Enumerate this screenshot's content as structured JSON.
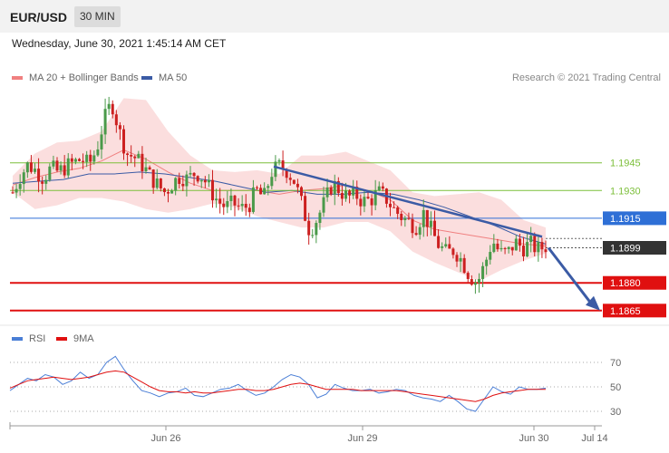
{
  "header": {
    "pair": "EUR/USD",
    "timeframe": "30 MIN",
    "datetime": "Wednesday, June 30, 2021 1:45:14 AM CET",
    "credit": "Research © 2021 Trading Central"
  },
  "legend": {
    "ma20": "MA 20 + Bollinger Bands",
    "ma50": "MA 50",
    "rsi": "RSI",
    "ma9": "9MA"
  },
  "colors": {
    "candle_up": "#4a9a4a",
    "candle_down": "#cc2020",
    "bollinger_fill": "#f9d3d3",
    "ma20": "#f08080",
    "ma50": "#3b5ba5",
    "trendline": "#3b5ba5",
    "support": "#e01010",
    "resistance": "#7cbf3a",
    "current_price": "#333333",
    "rsi": "#4a7ed6",
    "ma9": "#e01010"
  },
  "chart_data": [
    {
      "type": "candlestick",
      "title": "EUR/USD",
      "timeframe": "30 MIN",
      "x_ticks": [
        "Jun 26",
        "Jun 29",
        "Jun 30",
        "Jul 14"
      ],
      "ylim": [
        1.186,
        1.199
      ],
      "levels": [
        {
          "value": 1.1945,
          "label": "1.1945",
          "kind": "resistance",
          "color": "#7cbf3a",
          "box": false
        },
        {
          "value": 1.193,
          "label": "1.1930",
          "kind": "resistance",
          "color": "#7cbf3a",
          "box": false
        },
        {
          "value": 1.1915,
          "label": "1.1915",
          "kind": "pivot",
          "color": "#2e6fd6",
          "box": true
        },
        {
          "value": 1.1899,
          "label": "1.1899",
          "kind": "last-price",
          "color": "#333333",
          "box": true
        },
        {
          "value": 1.188,
          "label": "1.1880",
          "kind": "support",
          "color": "#e01010",
          "box": true
        },
        {
          "value": 1.1865,
          "label": "1.1865",
          "kind": "support",
          "color": "#e01010",
          "box": true
        }
      ],
      "trendline": {
        "from": 1.1943,
        "to": 1.1905
      },
      "forecast_arrow": {
        "from": 1.1899,
        "to": 1.1865
      },
      "close_path": [
        1.1929,
        1.1938,
        1.1944,
        1.1941,
        1.1937,
        1.1942,
        1.194,
        1.1943,
        1.1945,
        1.1947,
        1.1944,
        1.1952,
        1.1968,
        1.1978,
        1.1962,
        1.195,
        1.1948,
        1.1944,
        1.1938,
        1.1933,
        1.1929,
        1.1934,
        1.1938,
        1.1936,
        1.194,
        1.1937,
        1.193,
        1.1924,
        1.1921,
        1.1923,
        1.192,
        1.1922,
        1.193,
        1.1926,
        1.194,
        1.1943,
        1.1941,
        1.1935,
        1.1922,
        1.1908,
        1.1915,
        1.1924,
        1.1934,
        1.193,
        1.1926,
        1.1928,
        1.1924,
        1.1925,
        1.1929,
        1.1926,
        1.192,
        1.1916,
        1.1913,
        1.1911,
        1.1918,
        1.1908,
        1.19,
        1.1896,
        1.1898,
        1.1892,
        1.1884,
        1.188,
        1.189,
        1.1903,
        1.1896,
        1.1896,
        1.1902,
        1.1899,
        1.1901,
        1.1898,
        1.19
      ],
      "bollinger": {
        "upper": [
          1.1938,
          1.195,
          1.1956,
          1.1957,
          1.1962,
          1.198,
          1.1979,
          1.1962,
          1.1949,
          1.1941,
          1.194,
          1.1941,
          1.1939,
          1.1949,
          1.1949,
          1.1951,
          1.1946,
          1.1941,
          1.1929,
          1.1927,
          1.1928,
          1.1929,
          1.1925,
          1.1914,
          1.191
        ],
        "lower": [
          1.1929,
          1.192,
          1.1922,
          1.1926,
          1.1926,
          1.1924,
          1.192,
          1.1918,
          1.192,
          1.1923,
          1.1921,
          1.1916,
          1.1913,
          1.191,
          1.191,
          1.1913,
          1.1913,
          1.1908,
          1.1897,
          1.1891,
          1.1886,
          1.1881,
          1.1887,
          1.1892,
          1.1896
        ],
        "ma20": [
          1.1933,
          1.1937,
          1.194,
          1.1942,
          1.1946,
          1.1952,
          1.1947,
          1.194,
          1.1934,
          1.193,
          1.193,
          1.193,
          1.1928,
          1.193,
          1.1931,
          1.1933,
          1.193,
          1.1925,
          1.1914,
          1.1909,
          1.1907,
          1.1905,
          1.1903,
          1.1901,
          1.19
        ]
      },
      "ma50": [
        1.1934,
        1.1935,
        1.1936,
        1.1939,
        1.1939,
        1.194,
        1.1939,
        1.1937,
        1.1935,
        1.1932,
        1.1929,
        1.193,
        1.1928,
        1.1928,
        1.1929,
        1.1928,
        1.1925,
        1.1921,
        1.1916,
        1.1911,
        1.1905,
        1.1901
      ]
    },
    {
      "type": "line",
      "title": "RSI",
      "series": [
        {
          "name": "RSI",
          "values": [
            47,
            52,
            57,
            55,
            60,
            58,
            52,
            55,
            62,
            57,
            60,
            70,
            75,
            64,
            55,
            47,
            45,
            42,
            45,
            46,
            49,
            43,
            42,
            45,
            48,
            49,
            52,
            47,
            43,
            45,
            50,
            56,
            60,
            58,
            52,
            41,
            44,
            52,
            49,
            47,
            47,
            48,
            45,
            46,
            48,
            47,
            43,
            41,
            40,
            38,
            43,
            38,
            32,
            30,
            40,
            50,
            46,
            44,
            50,
            48,
            48,
            49
          ]
        },
        {
          "name": "9MA",
          "values": [
            49,
            52,
            55,
            56,
            57,
            58,
            57,
            56,
            57,
            58,
            60,
            62,
            63,
            62,
            58,
            54,
            50,
            47,
            46,
            46,
            45,
            46,
            45,
            45,
            46,
            47,
            48,
            48,
            47,
            47,
            48,
            50,
            52,
            53,
            52,
            50,
            48,
            48,
            48,
            48,
            47,
            47,
            47,
            47,
            47,
            46,
            45,
            44,
            43,
            42,
            41,
            40,
            39,
            38,
            40,
            43,
            45,
            46,
            47,
            48,
            48,
            48
          ]
        }
      ],
      "levels": [
        70,
        50,
        30
      ],
      "ylim": [
        22,
        78
      ]
    }
  ]
}
